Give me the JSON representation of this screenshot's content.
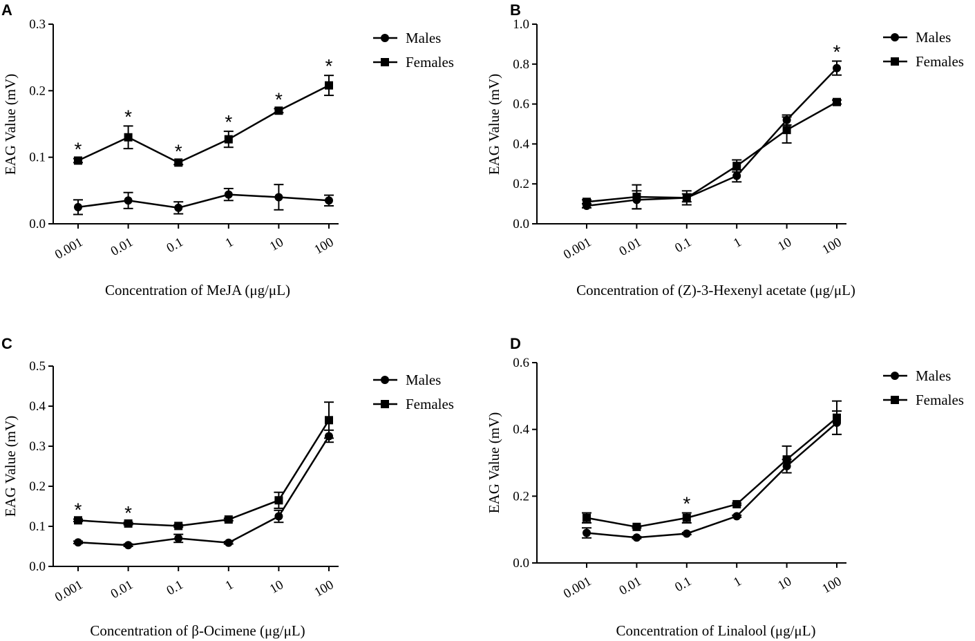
{
  "chart_data": [
    {
      "panel": "A",
      "type": "line",
      "title": "",
      "xlabel": "Concentration of MeJA (μg/μL)",
      "ylabel": "EAG Value (mV)",
      "categories": [
        "0.001",
        "0.01",
        "0.1",
        "1",
        "10",
        "100"
      ],
      "ylim": [
        0,
        0.3
      ],
      "yticks": [
        "0.0",
        "0.1",
        "0.2",
        "0.3"
      ],
      "ytick_values": [
        0,
        0.1,
        0.2,
        0.3
      ],
      "legend": "top-right",
      "series": [
        {
          "name": "Males",
          "marker": "circle",
          "values": [
            0.025,
            0.035,
            0.024,
            0.044,
            0.04,
            0.035
          ],
          "errors": [
            0.011,
            0.012,
            0.009,
            0.009,
            0.019,
            0.008
          ]
        },
        {
          "name": "Females",
          "marker": "square",
          "values": [
            0.095,
            0.13,
            0.092,
            0.127,
            0.17,
            0.208
          ],
          "errors": [
            0.003,
            0.017,
            0.003,
            0.012,
            0.003,
            0.015
          ]
        }
      ],
      "significance": [
        "*",
        "*",
        "*",
        "*",
        "*",
        "*"
      ]
    },
    {
      "panel": "B",
      "type": "line",
      "xlabel": "Concentration of (Z)-3-Hexenyl acetate (μg/μL)",
      "ylabel": "EAG Value (mV)",
      "categories": [
        "0.001",
        "0.01",
        "0.1",
        "1",
        "10",
        "100"
      ],
      "ylim": [
        0,
        1.0
      ],
      "yticks": [
        "0.0",
        "0.2",
        "0.4",
        "0.6",
        "0.8",
        "1.0"
      ],
      "ytick_values": [
        0,
        0.2,
        0.4,
        0.6,
        0.8,
        1.0
      ],
      "legend": "top-right",
      "series": [
        {
          "name": "Males",
          "marker": "circle",
          "values": [
            0.09,
            0.12,
            0.13,
            0.24,
            0.52,
            0.78
          ],
          "errors": [
            0.01,
            0.045,
            0.035,
            0.03,
            0.025,
            0.035
          ]
        },
        {
          "name": "Females",
          "marker": "square",
          "values": [
            0.11,
            0.135,
            0.13,
            0.29,
            0.47,
            0.61
          ],
          "errors": [
            0.01,
            0.06,
            0.02,
            0.03,
            0.065,
            0.01
          ]
        }
      ],
      "significance": [
        "",
        "",
        "",
        "",
        "",
        "*"
      ]
    },
    {
      "panel": "C",
      "type": "line",
      "xlabel": "Concentration of β-Ocimene (μg/μL)",
      "ylabel": "EAG Value (mV)",
      "categories": [
        "0.001",
        "0.01",
        "0.1",
        "1",
        "10",
        "100"
      ],
      "ylim": [
        0,
        0.5
      ],
      "yticks": [
        "0.0",
        "0.1",
        "0.2",
        "0.3",
        "0.4",
        "0.5"
      ],
      "ytick_values": [
        0,
        0.1,
        0.2,
        0.3,
        0.4,
        0.5
      ],
      "legend": "top-right",
      "series": [
        {
          "name": "Males",
          "marker": "circle",
          "values": [
            0.06,
            0.053,
            0.07,
            0.059,
            0.125,
            0.325
          ],
          "errors": [
            0.003,
            0.003,
            0.01,
            0.003,
            0.015,
            0.015
          ]
        },
        {
          "name": "Females",
          "marker": "square",
          "values": [
            0.115,
            0.107,
            0.101,
            0.117,
            0.165,
            0.365
          ],
          "errors": [
            0.003,
            0.003,
            0.003,
            0.003,
            0.02,
            0.045
          ]
        }
      ],
      "significance": [
        "*",
        "*",
        "",
        "",
        "",
        ""
      ]
    },
    {
      "panel": "D",
      "type": "line",
      "xlabel": "Concentration of Linalool (μg/μL)",
      "ylabel": "EAG Value (mV)",
      "categories": [
        "0.001",
        "0.01",
        "0.1",
        "1",
        "10",
        "100"
      ],
      "ylim": [
        0,
        0.6
      ],
      "yticks": [
        "0.0",
        "0.2",
        "0.4",
        "0.6"
      ],
      "ytick_values": [
        0,
        0.2,
        0.4,
        0.6
      ],
      "legend": "top-right",
      "series": [
        {
          "name": "Males",
          "marker": "circle",
          "values": [
            0.09,
            0.076,
            0.088,
            0.14,
            0.29,
            0.42
          ],
          "errors": [
            0.015,
            0.003,
            0.003,
            0.003,
            0.02,
            0.035
          ]
        },
        {
          "name": "Females",
          "marker": "square",
          "values": [
            0.135,
            0.108,
            0.135,
            0.176,
            0.31,
            0.435
          ],
          "errors": [
            0.015,
            0.003,
            0.015,
            0.003,
            0.04,
            0.05
          ]
        }
      ],
      "significance": [
        "",
        "",
        "*",
        "",
        "",
        ""
      ]
    }
  ]
}
